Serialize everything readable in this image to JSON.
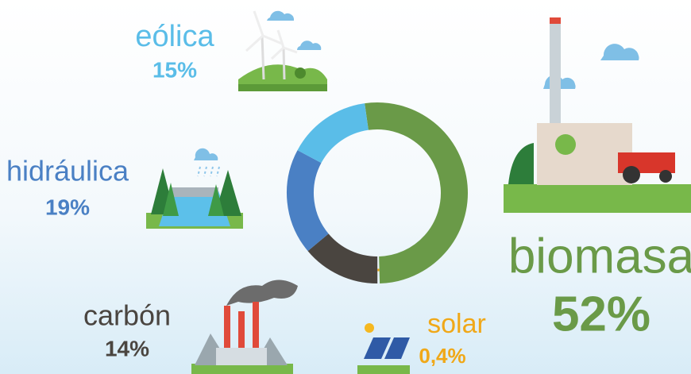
{
  "chart_data": {
    "type": "donut",
    "categories": [
      "biomasa",
      "solar",
      "carbón",
      "hidráulica",
      "eólica"
    ],
    "values": [
      52,
      0.4,
      14,
      19,
      15
    ],
    "value_labels": [
      "52%",
      "0,4%",
      "14%",
      "19%",
      "15%"
    ],
    "colors": [
      "#6a9a48",
      "#f0a818",
      "#4a4540",
      "#4a80c4",
      "#5abde8"
    ]
  }
}
